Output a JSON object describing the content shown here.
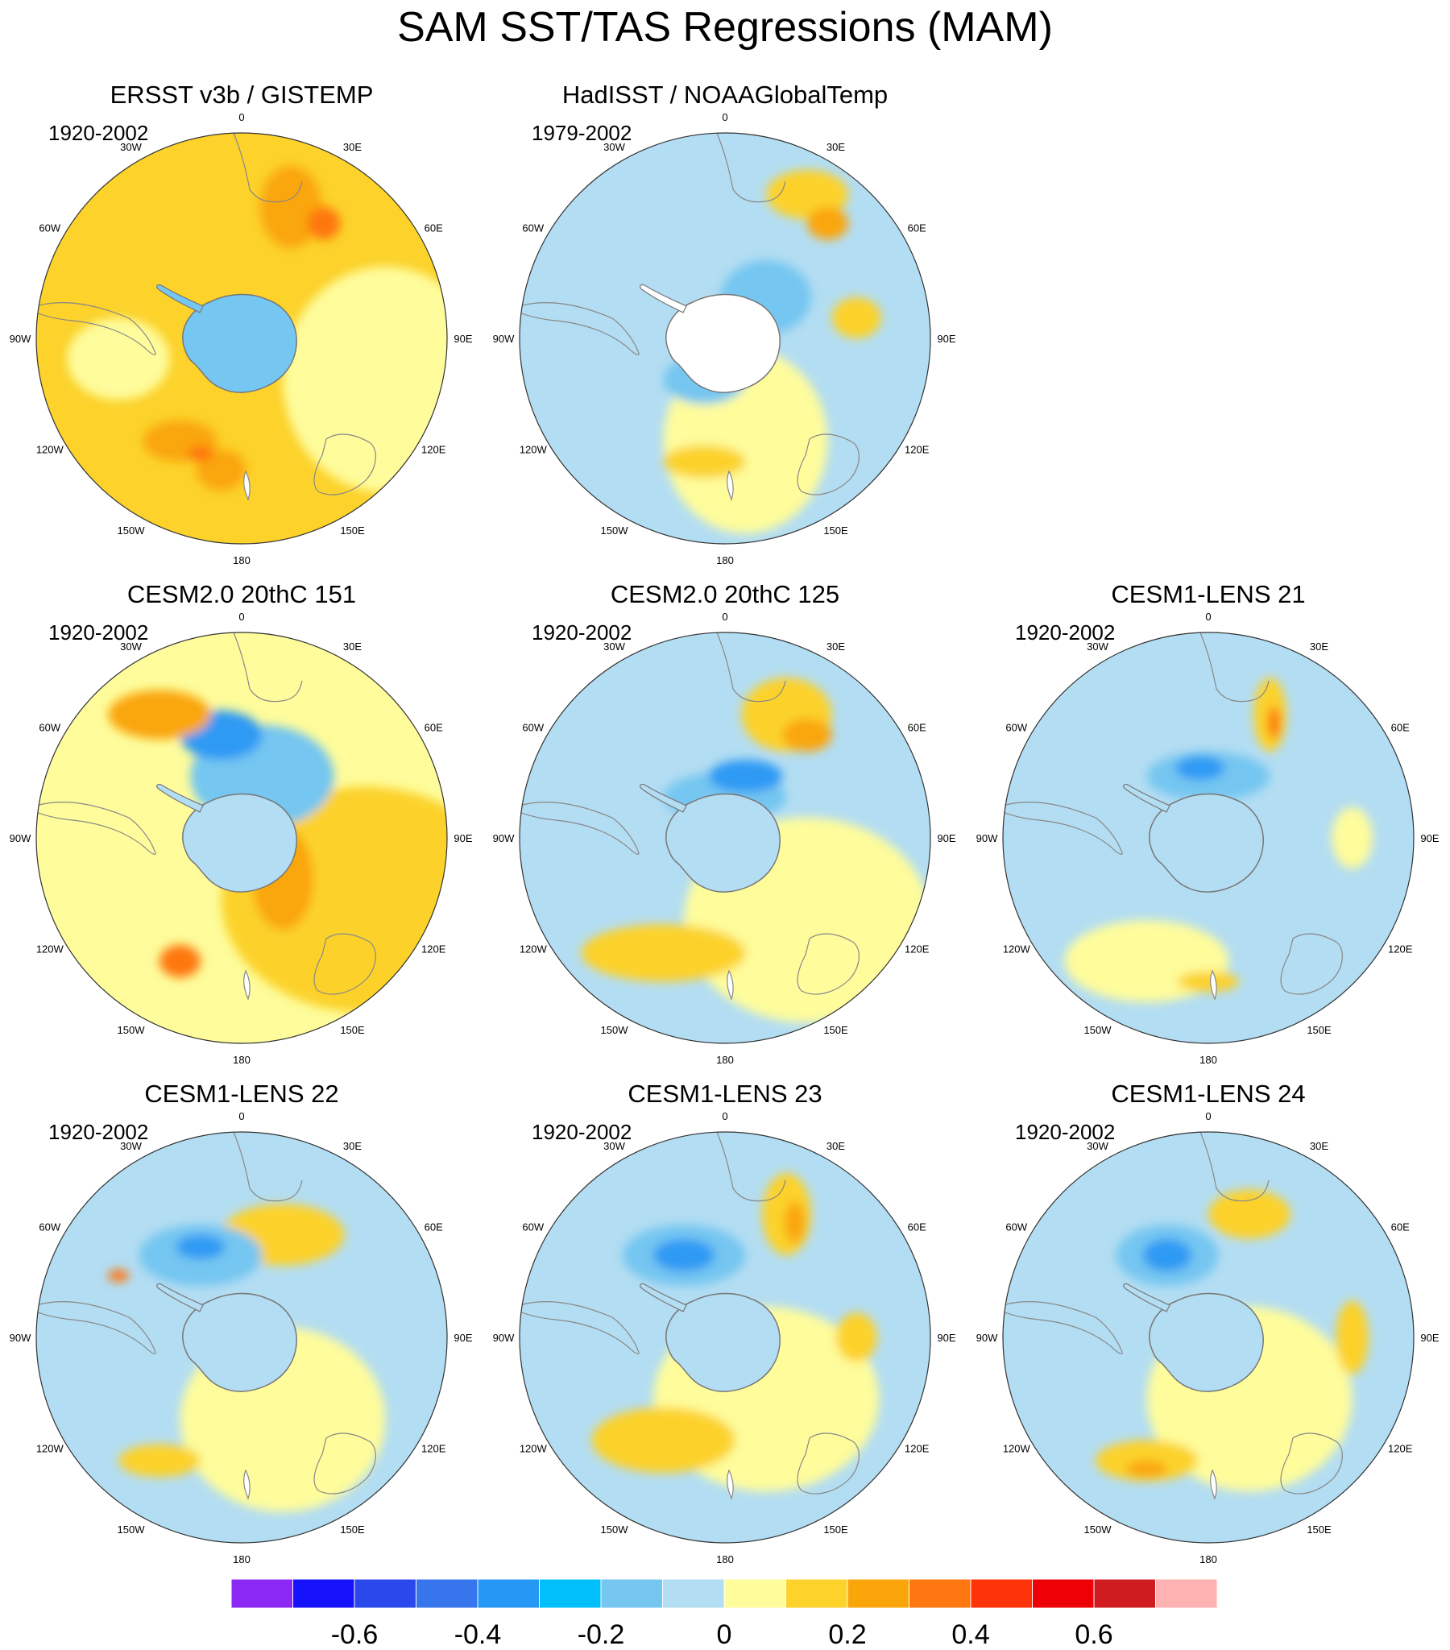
{
  "title": "SAM SST/TAS Regressions (MAM)",
  "panels": [
    {
      "title": "ERSST v3b / GISTEMP",
      "period": "1920-2002",
      "base": "#FCD22B",
      "antarctica": "#75C6F1",
      "blobs": [
        [
          "#FEFC9B",
          0.85,
          0.6,
          0.5,
          0.55
        ],
        [
          "#FAA60A",
          0.62,
          0.18,
          0.15,
          0.2
        ],
        [
          "#FE7711",
          0.7,
          0.22,
          0.08,
          0.08
        ],
        [
          "#FAA60A",
          0.35,
          0.75,
          0.18,
          0.1
        ],
        [
          "#FAA60A",
          0.45,
          0.82,
          0.12,
          0.1
        ],
        [
          "#FE7711",
          0.4,
          0.78,
          0.06,
          0.04
        ],
        [
          "#FEFC9B",
          0.2,
          0.55,
          0.25,
          0.2
        ]
      ]
    },
    {
      "title": "HadISST / NOAAGlobalTemp",
      "period": "1979-2002",
      "base": "#B3DDF2",
      "antarctica": "#FFFFFF",
      "blobs": [
        [
          "#FEFC9B",
          0.55,
          0.75,
          0.4,
          0.45
        ],
        [
          "#FCD22B",
          0.45,
          0.8,
          0.2,
          0.08
        ],
        [
          "#FCD22B",
          0.7,
          0.15,
          0.2,
          0.12
        ],
        [
          "#FAA60A",
          0.75,
          0.22,
          0.1,
          0.08
        ],
        [
          "#FCD22B",
          0.82,
          0.45,
          0.12,
          0.1
        ],
        [
          "#75C6F1",
          0.6,
          0.4,
          0.22,
          0.18
        ],
        [
          "#75C6F1",
          0.45,
          0.6,
          0.2,
          0.12
        ]
      ]
    },
    {
      "title": "CESM2.0 20thC 151",
      "period": "1920-2002",
      "base": "#FEFC9B",
      "antarctica": "#B3DDF2",
      "blobs": [
        [
          "#FCD22B",
          0.8,
          0.65,
          0.7,
          0.55
        ],
        [
          "#75C6F1",
          0.55,
          0.35,
          0.35,
          0.25
        ],
        [
          "#2F9AF4",
          0.45,
          0.25,
          0.2,
          0.12
        ],
        [
          "#FAA60A",
          0.6,
          0.6,
          0.15,
          0.25
        ],
        [
          "#FE7711",
          0.35,
          0.8,
          0.1,
          0.08
        ],
        [
          "#2F9AF4",
          0.9,
          0.1,
          0.06,
          0.12
        ],
        [
          "#FAA60A",
          0.3,
          0.2,
          0.25,
          0.12
        ]
      ]
    },
    {
      "title": "CESM2.0 20thC 125",
      "period": "1920-2002",
      "base": "#B3DDF2",
      "antarctica": "#B3DDF2",
      "blobs": [
        [
          "#FEFC9B",
          0.7,
          0.7,
          0.6,
          0.5
        ],
        [
          "#FCD22B",
          0.65,
          0.2,
          0.22,
          0.18
        ],
        [
          "#FAA60A",
          0.7,
          0.25,
          0.12,
          0.08
        ],
        [
          "#FCD22B",
          0.35,
          0.78,
          0.4,
          0.14
        ],
        [
          "#75C6F1",
          0.5,
          0.4,
          0.3,
          0.12
        ],
        [
          "#2F9AF4",
          0.55,
          0.35,
          0.18,
          0.08
        ]
      ]
    },
    {
      "title": "CESM1-LENS 21",
      "period": "1920-2002",
      "base": "#B3DDF2",
      "antarctica": "#B3DDF2",
      "blobs": [
        [
          "#FEFC9B",
          0.35,
          0.8,
          0.4,
          0.2
        ],
        [
          "#FCD22B",
          0.5,
          0.85,
          0.15,
          0.05
        ],
        [
          "#FCD22B",
          0.65,
          0.2,
          0.08,
          0.18
        ],
        [
          "#FE7711",
          0.66,
          0.22,
          0.03,
          0.08
        ],
        [
          "#75C6F1",
          0.5,
          0.35,
          0.3,
          0.12
        ],
        [
          "#2F9AF4",
          0.48,
          0.33,
          0.12,
          0.06
        ],
        [
          "#FEFC9B",
          0.85,
          0.5,
          0.1,
          0.15
        ]
      ]
    },
    {
      "title": "CESM1-LENS 22",
      "period": "1920-2002",
      "base": "#B3DDF2",
      "antarctica": "#B3DDF2",
      "blobs": [
        [
          "#FEFC9B",
          0.6,
          0.7,
          0.5,
          0.45
        ],
        [
          "#FCD22B",
          0.3,
          0.8,
          0.2,
          0.08
        ],
        [
          "#FCD22B",
          0.6,
          0.25,
          0.3,
          0.15
        ],
        [
          "#75C6F1",
          0.4,
          0.3,
          0.3,
          0.15
        ],
        [
          "#2F9AF4",
          0.4,
          0.28,
          0.12,
          0.06
        ],
        [
          "#FE7711",
          0.2,
          0.35,
          0.05,
          0.03
        ]
      ]
    },
    {
      "title": "CESM1-LENS 23",
      "period": "1920-2002",
      "base": "#B3DDF2",
      "antarctica": "#B3DDF2",
      "blobs": [
        [
          "#FEFC9B",
          0.6,
          0.65,
          0.55,
          0.45
        ],
        [
          "#FCD22B",
          0.35,
          0.75,
          0.35,
          0.16
        ],
        [
          "#FCD22B",
          0.65,
          0.2,
          0.12,
          0.2
        ],
        [
          "#FAA60A",
          0.67,
          0.22,
          0.05,
          0.1
        ],
        [
          "#75C6F1",
          0.4,
          0.3,
          0.3,
          0.15
        ],
        [
          "#2F9AF4",
          0.4,
          0.3,
          0.15,
          0.08
        ],
        [
          "#FCD22B",
          0.82,
          0.5,
          0.1,
          0.12
        ]
      ]
    },
    {
      "title": "CESM1-LENS 24",
      "period": "1920-2002",
      "base": "#B3DDF2",
      "antarctica": "#B3DDF2",
      "blobs": [
        [
          "#FEFC9B",
          0.6,
          0.65,
          0.5,
          0.45
        ],
        [
          "#FCD22B",
          0.35,
          0.8,
          0.25,
          0.1
        ],
        [
          "#FAA60A",
          0.35,
          0.82,
          0.1,
          0.04
        ],
        [
          "#FCD22B",
          0.6,
          0.2,
          0.2,
          0.12
        ],
        [
          "#75C6F1",
          0.4,
          0.3,
          0.25,
          0.15
        ],
        [
          "#2F9AF4",
          0.4,
          0.3,
          0.12,
          0.08
        ],
        [
          "#FCD22B",
          0.85,
          0.5,
          0.08,
          0.18
        ]
      ]
    }
  ],
  "lon_labels": [
    "0",
    "30E",
    "60E",
    "90E",
    "120E",
    "150E",
    "180",
    "150W",
    "120W",
    "90W",
    "60W",
    "30W"
  ],
  "colorbar": {
    "colors": [
      "#8B28F4",
      "#1512FB",
      "#2A48EB",
      "#3675EC",
      "#2597F5",
      "#00BFFB",
      "#75C6F1",
      "#B3DDF2",
      "#FEFC9B",
      "#FCD22B",
      "#FAA60A",
      "#FE7711",
      "#FE3309",
      "#ED0006",
      "#CF1C21",
      "#FFB2B2"
    ],
    "labels": [
      "-0.6",
      "-0.4",
      "-0.2",
      "0",
      "0.2",
      "0.4",
      "0.6"
    ]
  },
  "chart_data": {
    "type": "heatmap",
    "title": "SAM SST/TAS Regressions (MAM)",
    "projection": "south polar stereographic",
    "colorbar_levels": [
      -0.7,
      -0.6,
      -0.5,
      -0.4,
      -0.3,
      -0.2,
      -0.1,
      0,
      0.1,
      0.2,
      0.3,
      0.4,
      0.5,
      0.6,
      0.7
    ],
    "colorbar_tick_labels": [
      -0.6,
      -0.4,
      -0.2,
      0,
      0.2,
      0.4,
      0.6
    ],
    "longitude_labels": [
      "0",
      "30E",
      "60E",
      "90E",
      "120E",
      "150E",
      "180",
      "150W",
      "120W",
      "90W",
      "60W",
      "30W"
    ],
    "panels": [
      {
        "name": "ERSST v3b / GISTEMP",
        "period": "1920-2002"
      },
      {
        "name": "HadISST / NOAAGlobalTemp",
        "period": "1979-2002"
      },
      {
        "name": "CESM2.0 20thC 151",
        "period": "1920-2002"
      },
      {
        "name": "CESM2.0 20thC 125",
        "period": "1920-2002"
      },
      {
        "name": "CESM1-LENS 21",
        "period": "1920-2002"
      },
      {
        "name": "CESM1-LENS 22",
        "period": "1920-2002"
      },
      {
        "name": "CESM1-LENS 23",
        "period": "1920-2002"
      },
      {
        "name": "CESM1-LENS 24",
        "period": "1920-2002"
      }
    ]
  }
}
